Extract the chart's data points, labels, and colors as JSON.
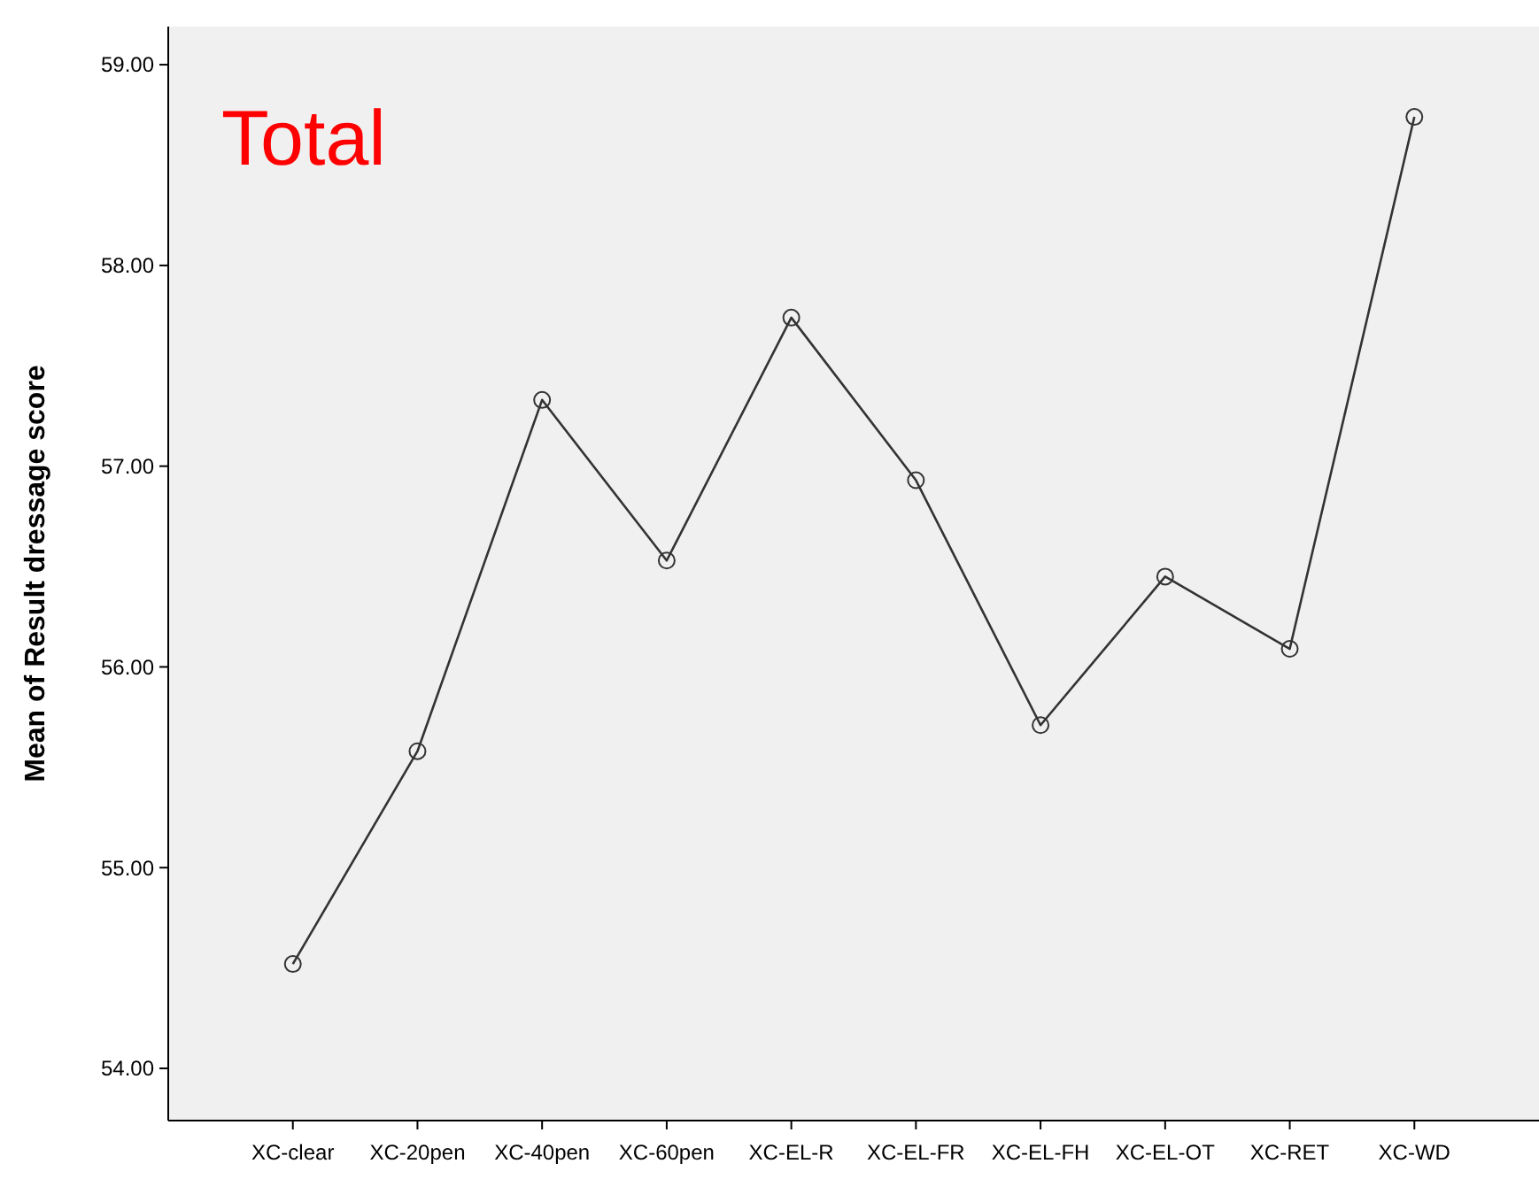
{
  "chart_data": {
    "type": "line",
    "title": "Total",
    "ylabel": "Mean of Result dressage score",
    "categories": [
      "XC-clear",
      "XC-20pen",
      "XC-40pen",
      "XC-60pen",
      "XC-EL-R",
      "XC-EL-FR",
      "XC-EL-FH",
      "XC-EL-OT",
      "XC-RET",
      "XC-WD"
    ],
    "series": [
      {
        "color": "#333333",
        "values": [
          54.52,
          55.58,
          57.33,
          56.53,
          57.74,
          56.93,
          55.71,
          56.45,
          56.09,
          58.74
        ]
      }
    ],
    "ylim": [
      53.74,
      59.19
    ],
    "yticks": [
      {
        "value": 54,
        "label": "54.00"
      },
      {
        "value": 55,
        "label": "55.00"
      },
      {
        "value": 56,
        "label": "56.00"
      },
      {
        "value": 57,
        "label": "57.00"
      },
      {
        "value": 58,
        "label": "58.00"
      },
      {
        "value": 59,
        "label": "59.00"
      }
    ],
    "grid": false,
    "marker": "circle",
    "line_style": "solid"
  }
}
